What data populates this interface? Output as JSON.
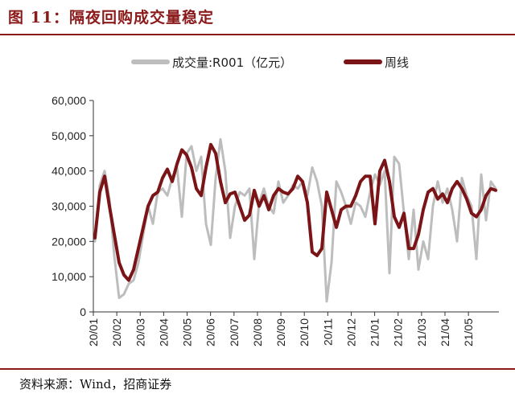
{
  "header": {
    "title": "图 11：隔夜回购成交量稳定"
  },
  "footer": {
    "source": "资料来源：Wind，招商证券"
  },
  "colors": {
    "accent": "#8B1A1A",
    "daily": "#BDBDBD",
    "weekly": "#7B1416"
  },
  "chart_data": {
    "type": "line",
    "title": "",
    "xlabel": "",
    "ylabel": "",
    "ylim": [
      0,
      60000
    ],
    "yticks": [
      "0",
      "10,000",
      "20,000",
      "30,000",
      "40,000",
      "50,000",
      "60,000"
    ],
    "xticks": [
      "20/01",
      "20/02",
      "20/03",
      "20/04",
      "20/05",
      "20/06",
      "20/07",
      "20/08",
      "20/09",
      "20/10",
      "20/11",
      "20/12",
      "21/01",
      "21/02",
      "21/03",
      "21/04",
      "21/05"
    ],
    "legend_position": "top",
    "grid": false,
    "series": [
      {
        "name": "成交量:R001（亿元）",
        "style": "daily",
        "values": [
          20000,
          36000,
          40000,
          32000,
          16000,
          4000,
          5000,
          8000,
          9000,
          14000,
          22000,
          30000,
          25000,
          34000,
          35000,
          33000,
          38000,
          41000,
          27000,
          45000,
          47000,
          40000,
          44000,
          25000,
          19000,
          38000,
          49000,
          40000,
          21000,
          30000,
          34000,
          33000,
          35000,
          15000,
          31000,
          35000,
          30000,
          28000,
          37000,
          31000,
          33000,
          36000,
          35000,
          37000,
          33000,
          41000,
          37000,
          30000,
          3000,
          14000,
          37000,
          34000,
          30000,
          25000,
          31000,
          30000,
          27000,
          34000,
          39000,
          36000,
          40000,
          11000,
          44000,
          42000,
          28000,
          15000,
          29000,
          12000,
          20000,
          15000,
          30000,
          37000,
          31000,
          35000,
          29000,
          20000,
          38000,
          33000,
          30000,
          15000,
          39000,
          26000,
          37000,
          35000
        ]
      },
      {
        "name": "周线",
        "style": "weekly",
        "values": [
          21000,
          34000,
          38500,
          30000,
          22000,
          14000,
          10500,
          9000,
          12000,
          18000,
          24000,
          30000,
          33000,
          34000,
          38000,
          40500,
          37000,
          42000,
          46000,
          44500,
          41000,
          35000,
          33000,
          41000,
          47500,
          45000,
          37000,
          31000,
          33500,
          34000,
          30000,
          26000,
          27500,
          34500,
          30000,
          33000,
          29000,
          33000,
          35000,
          34000,
          33500,
          35000,
          38500,
          37000,
          31000,
          17000,
          16000,
          18000,
          34000,
          29000,
          24000,
          29000,
          30000,
          30000,
          33000,
          37000,
          38500,
          38500,
          25000,
          40000,
          43000,
          37000,
          27000,
          24000,
          28000,
          18000,
          18000,
          22000,
          29000,
          34000,
          35000,
          32000,
          33500,
          31000,
          35000,
          37000,
          35000,
          32000,
          28000,
          27000,
          29000,
          33000,
          35000,
          34500
        ]
      }
    ]
  }
}
